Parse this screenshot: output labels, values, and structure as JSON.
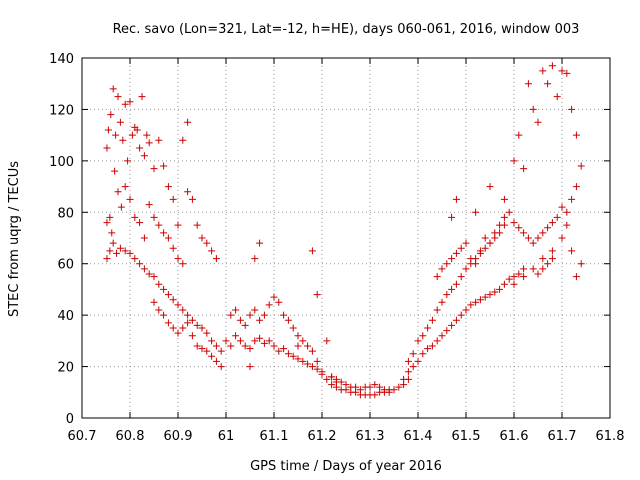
{
  "chart_data": {
    "type": "scatter",
    "title": "Rec. savo (Lon=321, Lat=-12, h=HE), days 060-061, 2016, window 003",
    "xlabel": "GPS time / Days of year 2016",
    "ylabel": "STEC from uqrg / TECUs",
    "xlim": [
      60.7,
      61.8
    ],
    "ylim": [
      0,
      140
    ],
    "xticks": [
      "60.7",
      "60.8",
      "60.9",
      "61",
      "61.1",
      "61.2",
      "61.3",
      "61.4",
      "61.5",
      "61.6",
      "61.7",
      "61.8"
    ],
    "yticks": [
      "0",
      "20",
      "40",
      "60",
      "80",
      "100",
      "120",
      "140"
    ],
    "grid": true,
    "marker": "+",
    "color": "#cc0000",
    "series": [
      {
        "name": "arc-upper-left",
        "x": [
          60.752,
          60.755,
          60.76,
          60.765,
          60.77,
          60.775,
          60.78,
          60.785,
          60.79,
          60.795,
          60.8,
          60.805,
          60.81,
          60.815,
          60.82,
          60.825,
          60.83,
          60.835,
          60.84,
          60.85,
          60.86,
          60.87,
          60.88,
          60.89,
          60.9,
          60.91,
          60.92
        ],
        "y": [
          105,
          112,
          118,
          128,
          110,
          125,
          115,
          108,
          122,
          100,
          123,
          110,
          113,
          112,
          105,
          125,
          102,
          110,
          107,
          97,
          108,
          98,
          90,
          85,
          75,
          108,
          115
        ]
      },
      {
        "name": "arc-left-mid",
        "x": [
          60.752,
          60.758,
          60.762,
          60.768,
          60.775,
          60.782,
          60.79,
          60.8,
          60.81,
          60.82,
          60.83,
          60.84,
          60.85,
          60.86,
          60.87,
          60.88,
          60.89,
          60.9,
          60.91,
          60.92,
          60.93,
          60.94,
          60.95,
          60.96,
          60.97,
          60.98
        ],
        "y": [
          76,
          78,
          72,
          96,
          88,
          82,
          90,
          85,
          78,
          76,
          70,
          83,
          78,
          75,
          72,
          70,
          66,
          62,
          60,
          88,
          85,
          75,
          70,
          68,
          65,
          62
        ]
      },
      {
        "name": "arc-left-low",
        "x": [
          60.752,
          60.758,
          60.765,
          60.772,
          60.78,
          60.79,
          60.8,
          60.81,
          60.82,
          60.83,
          60.84,
          60.85,
          60.86,
          60.87,
          60.88,
          60.89,
          60.9,
          60.91,
          60.92,
          60.93,
          60.94,
          60.95,
          60.96,
          60.97,
          60.98,
          60.99
        ],
        "y": [
          62,
          65,
          68,
          64,
          66,
          65,
          64,
          62,
          60,
          58,
          56,
          55,
          52,
          50,
          48,
          46,
          44,
          42,
          40,
          38,
          36,
          35,
          33,
          30,
          28,
          26
        ]
      },
      {
        "name": "arc-left-bottom",
        "x": [
          60.85,
          60.86,
          60.87,
          60.88,
          60.89,
          60.9,
          60.91,
          60.92,
          60.93,
          60.94,
          60.95,
          60.96,
          60.97,
          60.98,
          60.99
        ],
        "y": [
          45,
          42,
          40,
          37,
          35,
          33,
          35,
          37,
          32,
          28,
          27,
          26,
          24,
          22,
          20
        ]
      },
      {
        "name": "middle-cluster-a",
        "x": [
          61.01,
          61.02,
          61.03,
          61.04,
          61.05,
          61.06,
          61.07,
          61.08,
          61.09,
          61.1,
          61.11,
          61.12,
          61.13,
          61.14,
          61.15,
          61.16,
          61.17,
          61.18,
          61.19,
          61.2
        ],
        "y": [
          40,
          42,
          38,
          36,
          40,
          42,
          38,
          40,
          44,
          47,
          45,
          40,
          38,
          35,
          32,
          30,
          28,
          26,
          22,
          18
        ]
      },
      {
        "name": "middle-cluster-b",
        "x": [
          61.0,
          61.01,
          61.02,
          61.03,
          61.04,
          61.05,
          61.06,
          61.07,
          61.08,
          61.09,
          61.1,
          61.11,
          61.12,
          61.13,
          61.14,
          61.15,
          61.16,
          61.17,
          61.18,
          61.19,
          61.2,
          61.21,
          61.22,
          61.23
        ],
        "y": [
          30,
          28,
          32,
          30,
          28,
          27,
          30,
          31,
          29,
          30,
          28,
          26,
          27,
          25,
          24,
          23,
          22,
          21,
          20,
          19,
          17,
          15,
          16,
          14
        ]
      },
      {
        "name": "middle-trough",
        "x": [
          61.22,
          61.23,
          61.24,
          61.25,
          61.26,
          61.27,
          61.28,
          61.29,
          61.3,
          61.31,
          61.32,
          61.33,
          61.34,
          61.35,
          61.36,
          61.37,
          61.38
        ],
        "y": [
          13,
          12,
          11,
          11,
          10,
          10,
          9,
          9,
          9,
          9,
          10,
          10,
          10,
          11,
          12,
          13,
          15
        ]
      },
      {
        "name": "middle-trough-upper",
        "x": [
          61.22,
          61.23,
          61.24,
          61.25,
          61.26,
          61.27,
          61.28,
          61.29,
          61.3,
          61.31,
          61.32,
          61.33,
          61.34
        ],
        "y": [
          16,
          15,
          14,
          13,
          12,
          12,
          11,
          12,
          12,
          13,
          12,
          11,
          11
        ]
      },
      {
        "name": "middle-outliers",
        "x": [
          61.07,
          61.18,
          61.19,
          61.05,
          61.21,
          61.06,
          61.15
        ],
        "y": [
          68,
          65,
          48,
          20,
          30,
          62,
          28
        ]
      },
      {
        "name": "arc-right-rise-a",
        "x": [
          61.37,
          61.38,
          61.39,
          61.4,
          61.41,
          61.42,
          61.43,
          61.44,
          61.45,
          61.46,
          61.47,
          61.48,
          61.49,
          61.5,
          61.51,
          61.52,
          61.53,
          61.54,
          61.55,
          61.56,
          61.57,
          61.58,
          61.59,
          61.6,
          61.61,
          61.62
        ],
        "y": [
          15,
          18,
          20,
          22,
          25,
          27,
          28,
          30,
          32,
          34,
          36,
          38,
          40,
          42,
          44,
          45,
          46,
          47,
          48,
          49,
          50,
          52,
          54,
          55,
          56,
          58
        ]
      },
      {
        "name": "arc-right-rise-b",
        "x": [
          61.38,
          61.39,
          61.4,
          61.41,
          61.42,
          61.43,
          61.44,
          61.45,
          61.46,
          61.47,
          61.48,
          61.49,
          61.5,
          61.51,
          61.52,
          61.53,
          61.54,
          61.55,
          61.56,
          61.57,
          61.58
        ],
        "y": [
          22,
          25,
          30,
          32,
          35,
          38,
          42,
          45,
          48,
          50,
          52,
          55,
          58,
          60,
          62,
          64,
          66,
          68,
          70,
          72,
          75
        ]
      },
      {
        "name": "arc-right-mid",
        "x": [
          61.44,
          61.45,
          61.46,
          61.47,
          61.48,
          61.49,
          61.5,
          61.51,
          61.52,
          61.53,
          61.54,
          61.55,
          61.56,
          61.57,
          61.58,
          61.59,
          61.6,
          61.61,
          61.62,
          61.63,
          61.64,
          61.65,
          61.66,
          61.67,
          61.68
        ],
        "y": [
          55,
          58,
          60,
          62,
          64,
          66,
          68,
          62,
          60,
          65,
          70,
          68,
          72,
          75,
          78,
          80,
          76,
          74,
          72,
          70,
          68,
          70,
          72,
          74,
          76
        ]
      },
      {
        "name": "arc-right-upper",
        "x": [
          61.47,
          61.48,
          61.52,
          61.55,
          61.58,
          61.6,
          61.61,
          61.62,
          61.63,
          61.64,
          61.65,
          61.66,
          61.67,
          61.68,
          61.69,
          61.7,
          61.71,
          61.72,
          61.73
        ],
        "y": [
          78,
          85,
          80,
          90,
          85,
          100,
          110,
          97,
          130,
          120,
          115,
          135,
          130,
          137,
          125,
          135,
          134,
          120,
          110
        ]
      },
      {
        "name": "arc-right-far",
        "x": [
          61.6,
          61.62,
          61.64,
          61.66,
          61.68,
          61.7,
          61.71,
          61.72,
          61.73,
          61.74,
          61.74,
          61.73,
          61.72,
          61.71,
          61.7,
          61.69,
          61.68,
          61.67,
          61.66,
          61.65
        ],
        "y": [
          52,
          55,
          58,
          62,
          65,
          70,
          80,
          85,
          90,
          98,
          60,
          55,
          65,
          75,
          82,
          78,
          62,
          60,
          58,
          56
        ]
      }
    ]
  }
}
